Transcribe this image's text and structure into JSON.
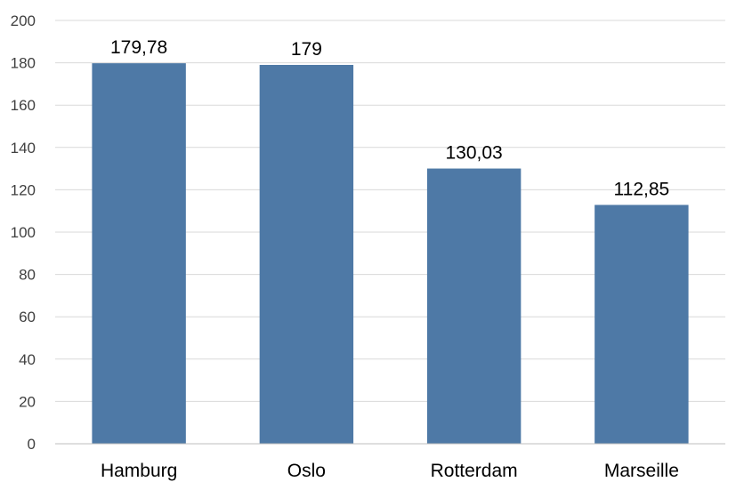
{
  "chart_data": {
    "type": "bar",
    "categories": [
      "Hamburg",
      "Oslo",
      "Rotterdam",
      "Marseille"
    ],
    "values": [
      179.78,
      179,
      130.03,
      112.85
    ],
    "data_labels": [
      "179,78",
      "179",
      "130,03",
      "112,85"
    ],
    "title": "",
    "xlabel": "",
    "ylabel": "",
    "ylim": [
      0,
      200
    ],
    "yticks": [
      0,
      20,
      40,
      60,
      80,
      100,
      120,
      140,
      160,
      180,
      200
    ],
    "grid": true,
    "legend": "none",
    "colors": {
      "bar": "#4e79a6",
      "grid": "#d9d9d9",
      "axis": "#bfbfbf"
    }
  }
}
